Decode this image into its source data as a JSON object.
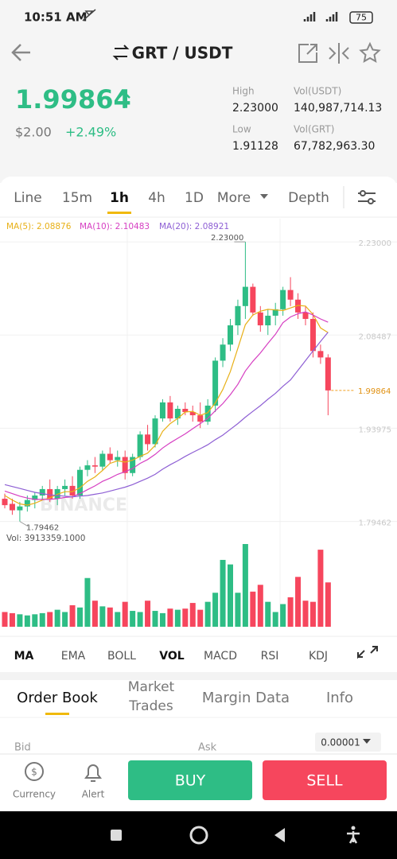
{
  "status_bar": {
    "time": "10:51 AM",
    "battery": "75"
  },
  "header": {
    "pair": "GRT / USDT"
  },
  "ticker": {
    "price": "1.99864",
    "usd_price": "$2.00",
    "change": "+2.49%",
    "stats": [
      {
        "label": "High",
        "value": "2.23000"
      },
      {
        "label": "Vol(USDT)",
        "value": "140,987,714.13"
      },
      {
        "label": "Low",
        "value": "1.91128"
      },
      {
        "label": "Vol(GRT)",
        "value": "67,782,963.30"
      }
    ]
  },
  "interval_tabs": {
    "items": [
      "Line",
      "15m",
      "1h",
      "4h",
      "1D",
      "More",
      "Depth"
    ],
    "active": 2
  },
  "chart_data": {
    "type": "candlestick",
    "up_color": "#2ebd85",
    "down_color": "#f6465d",
    "ylim": [
      1.783,
      2.266
    ],
    "yticks": [
      {
        "value": 2.23,
        "label": "2.23000"
      },
      {
        "value": 2.08487,
        "label": "2.08487"
      },
      {
        "value": 1.93975,
        "label": "1.93975"
      },
      {
        "value": 1.79462,
        "label": "1.79462"
      }
    ],
    "grid": true,
    "watermark": "BINANCE",
    "high_label": "2.23000",
    "low_label": "1.79462",
    "last_label": "1.99864",
    "volume_label": "Vol: 3913359.1000",
    "open": [
      1.83,
      1.822,
      1.812,
      1.818,
      1.828,
      1.835,
      1.845,
      1.83,
      1.845,
      1.85,
      1.835,
      1.875,
      1.882,
      1.88,
      1.9,
      1.89,
      1.895,
      1.87,
      1.895,
      1.93,
      1.915,
      1.955,
      1.98,
      1.955,
      1.97,
      1.965,
      1.96,
      1.95,
      1.975,
      2.045,
      2.07,
      2.1,
      2.13,
      2.16,
      2.12,
      2.1,
      2.115,
      2.125,
      2.155,
      2.14,
      2.12,
      2.11,
      2.06,
      2.05
    ],
    "high": [
      1.838,
      1.83,
      1.825,
      1.835,
      1.84,
      1.85,
      1.86,
      1.85,
      1.86,
      1.865,
      1.88,
      1.89,
      1.895,
      1.905,
      1.91,
      1.905,
      1.905,
      1.9,
      1.935,
      1.945,
      1.96,
      1.985,
      1.99,
      1.975,
      1.98,
      1.975,
      1.98,
      1.985,
      2.05,
      2.08,
      2.11,
      2.14,
      2.23,
      2.165,
      2.13,
      2.125,
      2.135,
      2.16,
      2.175,
      2.15,
      2.13,
      2.12,
      2.07,
      2.055
    ],
    "low": [
      1.815,
      1.805,
      1.79462,
      1.81,
      1.815,
      1.828,
      1.825,
      1.82,
      1.835,
      1.83,
      1.83,
      1.865,
      1.87,
      1.875,
      1.885,
      1.88,
      1.86,
      1.865,
      1.89,
      1.905,
      1.91,
      1.95,
      1.95,
      1.945,
      1.96,
      1.95,
      1.94,
      1.945,
      1.965,
      2.035,
      2.06,
      2.085,
      2.11,
      2.115,
      2.09,
      2.085,
      2.1,
      2.115,
      2.13,
      2.11,
      2.1,
      2.05,
      2.04,
      1.96
    ],
    "close": [
      1.82,
      1.812,
      1.818,
      1.828,
      1.835,
      1.845,
      1.83,
      1.845,
      1.85,
      1.835,
      1.875,
      1.882,
      1.88,
      1.9,
      1.89,
      1.895,
      1.87,
      1.895,
      1.93,
      1.915,
      1.955,
      1.98,
      1.955,
      1.97,
      1.965,
      1.96,
      1.95,
      1.975,
      2.045,
      2.07,
      2.1,
      2.13,
      2.16,
      2.12,
      2.1,
      2.115,
      2.125,
      2.155,
      2.14,
      2.12,
      2.11,
      2.06,
      2.05,
      1.99864
    ],
    "volume": [
      1300000,
      1200000,
      1100000,
      1000000,
      1100000,
      1200000,
      1300000,
      1500000,
      1300000,
      1900000,
      1700000,
      4300000,
      2300000,
      1800000,
      1700000,
      1300000,
      2200000,
      1400000,
      1300000,
      2300000,
      1400000,
      1200000,
      1600000,
      1500000,
      1600000,
      2100000,
      1500000,
      2200000,
      3000000,
      5900000,
      5500000,
      3000000,
      7300000,
      3100000,
      3700000,
      2200000,
      1300000,
      2000000,
      2600000,
      4400000,
      2300000,
      2200000,
      6800000,
      3913359.1
    ],
    "ma_lines": [
      {
        "label": "MA(5): 2.08876",
        "color": "#e8b017",
        "values": [
          1.835,
          1.828,
          1.822,
          1.82,
          1.823,
          1.828,
          1.831,
          1.837,
          1.841,
          1.841,
          1.847,
          1.857,
          1.864,
          1.874,
          1.885,
          1.889,
          1.887,
          1.89,
          1.896,
          1.901,
          1.913,
          1.935,
          1.947,
          1.955,
          1.965,
          1.966,
          1.96,
          1.964,
          1.979,
          2.0,
          2.028,
          2.064,
          2.101,
          2.116,
          2.122,
          2.125,
          2.124,
          2.123,
          2.127,
          2.131,
          2.13,
          2.117,
          2.096,
          2.08876
        ]
      },
      {
        "label": "MA(10): 2.10483",
        "color": "#d63fc2",
        "values": [
          1.842,
          1.838,
          1.834,
          1.831,
          1.829,
          1.829,
          1.829,
          1.83,
          1.832,
          1.833,
          1.838,
          1.844,
          1.85,
          1.857,
          1.862,
          1.868,
          1.872,
          1.877,
          1.885,
          1.891,
          1.899,
          1.909,
          1.917,
          1.924,
          1.931,
          1.939,
          1.947,
          1.955,
          1.967,
          1.978,
          1.992,
          2.008,
          2.029,
          2.044,
          2.057,
          2.072,
          2.086,
          2.104,
          2.113,
          2.118,
          2.121,
          2.116,
          2.11,
          2.10483
        ]
      },
      {
        "label": "MA(20): 2.08921",
        "color": "#8e5fd4",
        "values": [
          1.852,
          1.849,
          1.846,
          1.843,
          1.84,
          1.838,
          1.836,
          1.835,
          1.834,
          1.833,
          1.834,
          1.835,
          1.837,
          1.839,
          1.842,
          1.845,
          1.848,
          1.852,
          1.857,
          1.862,
          1.868,
          1.876,
          1.883,
          1.889,
          1.896,
          1.902,
          1.908,
          1.914,
          1.922,
          1.929,
          1.938,
          1.947,
          1.957,
          1.966,
          1.975,
          1.985,
          1.994,
          2.005,
          2.015,
          2.03,
          2.045,
          2.06,
          2.075,
          2.08921
        ]
      }
    ]
  },
  "indicator_tabs": {
    "items": [
      "MA",
      "EMA",
      "BOLL",
      "VOL",
      "MACD",
      "RSI",
      "KDJ"
    ],
    "active": [
      0,
      3
    ]
  },
  "info_tabs": [
    "Order Book",
    "Market Trades",
    "Margin Data",
    "Info"
  ],
  "order_book": {
    "bid": "Bid",
    "ask": "Ask",
    "precision": "0.00001"
  },
  "bottom_bar": {
    "currency": "Currency",
    "alert": "Alert",
    "buy": "BUY",
    "sell": "SELL"
  }
}
